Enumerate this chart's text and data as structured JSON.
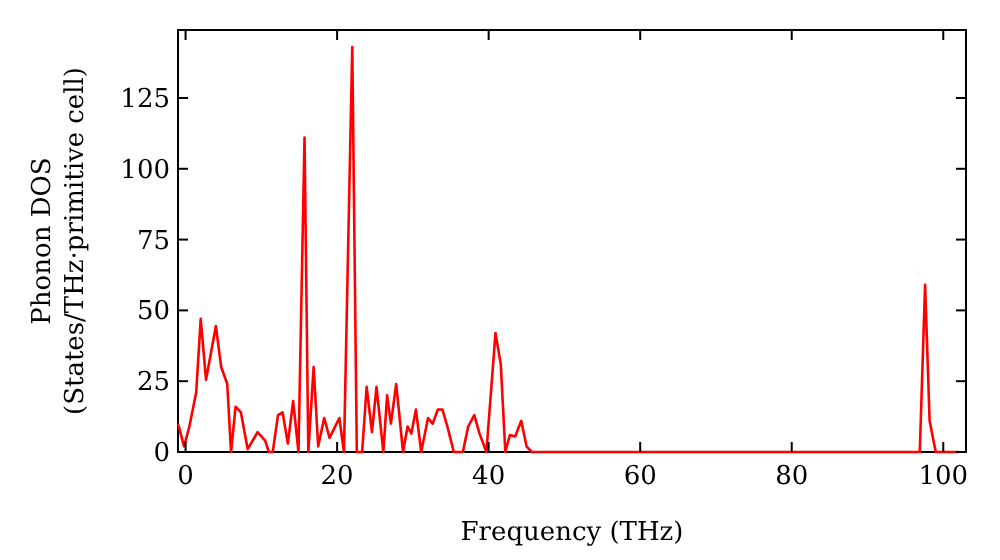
{
  "chart_data": {
    "type": "line",
    "xlabel": "Frequency (THz)",
    "ylabel": "Phonon DOS\n(States/THz·primitive cell)",
    "xlim": [
      -1,
      103
    ],
    "ylim": [
      0,
      149
    ],
    "xticks": [
      0,
      20,
      40,
      60,
      80,
      100
    ],
    "yticks": [
      0,
      25,
      50,
      75,
      100,
      125
    ],
    "grid": false,
    "marker": "none",
    "line_style": "solid",
    "series": [
      {
        "color": "#ff0000",
        "x": [
          -1,
          -0.2,
          0.5,
          1.4,
          2,
          2.7,
          4,
          4.7,
          5.5,
          6,
          6.6,
          7.3,
          8.2,
          9.5,
          10.5,
          11,
          11.5,
          12.2,
          12.8,
          13.5,
          14.2,
          14.9,
          15.7,
          16.2,
          16.9,
          17.5,
          18.3,
          19,
          20.3,
          20.9,
          22,
          22.6,
          23.3,
          23.9,
          24.6,
          25.2,
          26.1,
          26.6,
          27.1,
          27.8,
          28.7,
          29.3,
          29.8,
          30.4,
          31.1,
          32,
          32.6,
          33.3,
          33.9,
          34.6,
          35.4,
          36.6,
          37.3,
          38.1,
          38.8,
          39.7,
          40.9,
          41.6,
          42.2,
          42.8,
          43.5,
          44.3,
          45,
          45.7,
          96.9,
          97.6,
          98.2,
          99,
          102
        ],
        "values": [
          10,
          2,
          9,
          21,
          47,
          25.5,
          44.5,
          30,
          24,
          0,
          16,
          14,
          1,
          7,
          4,
          0,
          0,
          13,
          14,
          3,
          18,
          0,
          111,
          0,
          30,
          2,
          12,
          5,
          12,
          0,
          143,
          0,
          0,
          23,
          7,
          23,
          0,
          20,
          10,
          24,
          0,
          9,
          6.5,
          15,
          0,
          12,
          10,
          15,
          15,
          8.5,
          0,
          0,
          9,
          13,
          6.5,
          0,
          42,
          31,
          0,
          6,
          5.5,
          11,
          2,
          0,
          0,
          59,
          11,
          0,
          0
        ]
      }
    ]
  }
}
